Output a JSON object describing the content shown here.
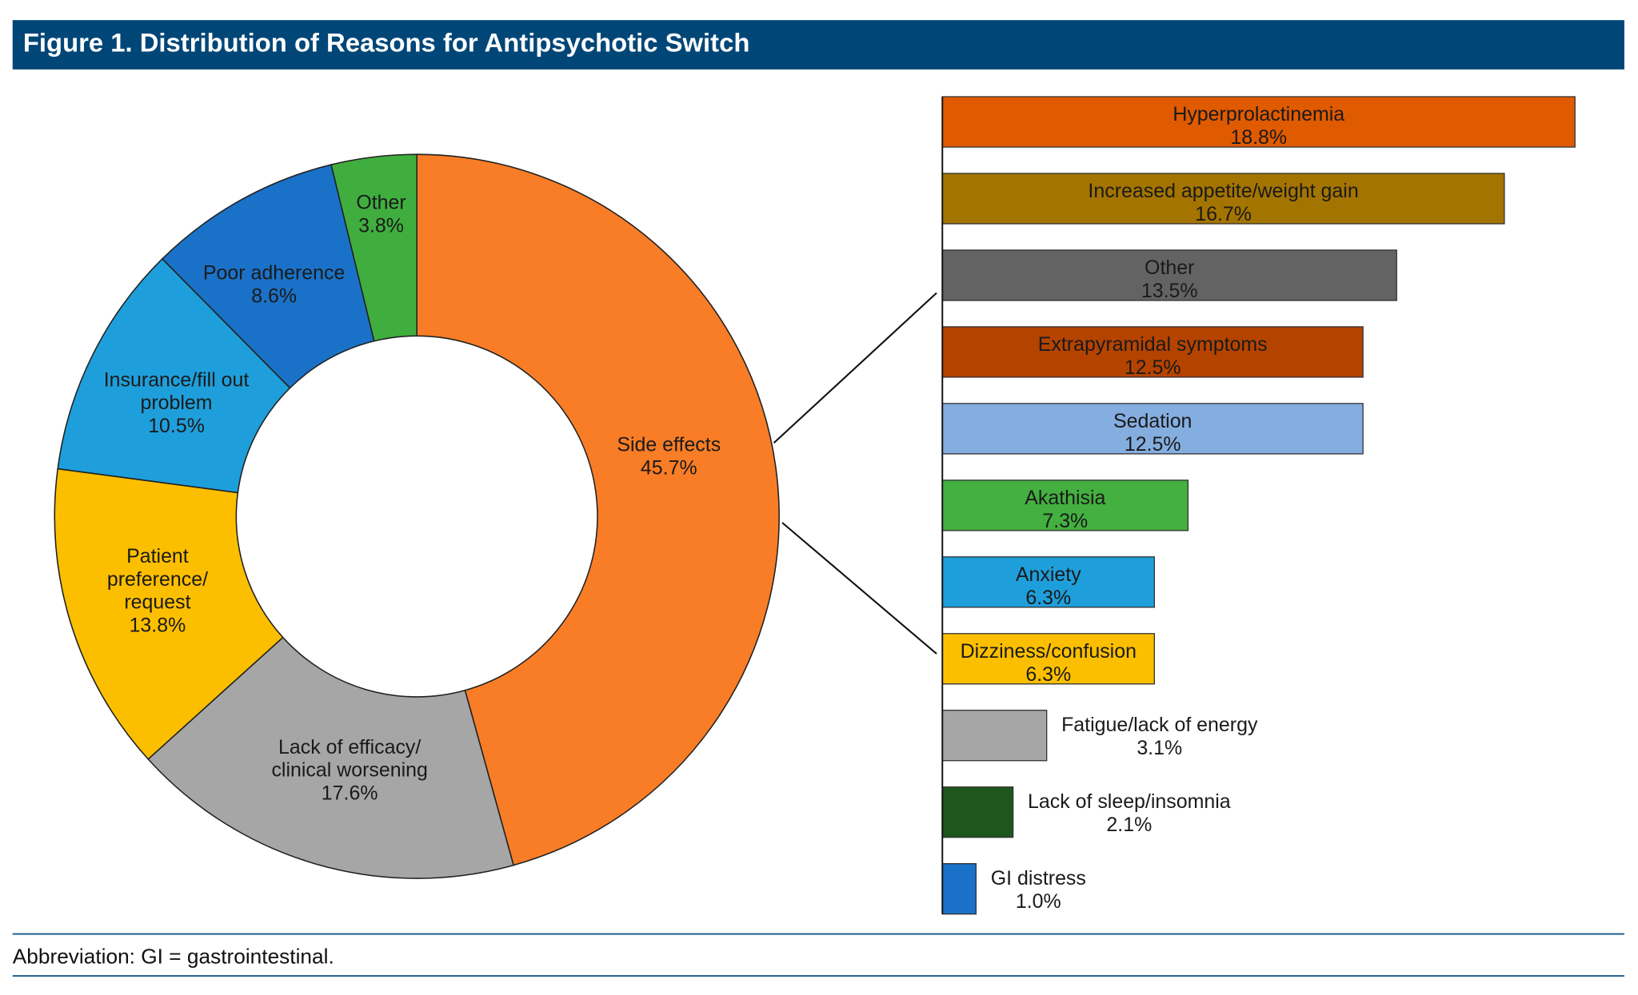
{
  "chart_data": [
    {
      "type": "pie",
      "variant": "donut",
      "title": "Figure 1. Distribution of Reasons for Antipsychotic Switch",
      "slices": [
        {
          "label": [
            "Side effects"
          ],
          "value": 45.7,
          "value_label": "45.7%",
          "color": "#F97D26"
        },
        {
          "label": [
            "Lack of efficacy/",
            "clinical worsening"
          ],
          "value": 17.6,
          "value_label": "17.6%",
          "color": "#A6A6A6"
        },
        {
          "label": [
            "Patient",
            "preference/",
            "request"
          ],
          "value": 13.8,
          "value_label": "13.8%",
          "color": "#FCBF00"
        },
        {
          "label": [
            "Insurance/fill out",
            "problem"
          ],
          "value": 10.5,
          "value_label": "10.5%",
          "color": "#1E9FDC"
        },
        {
          "label": [
            "Poor adherence"
          ],
          "value": 8.6,
          "value_label": "8.6%",
          "color": "#1A72C8"
        },
        {
          "label": [
            "Other"
          ],
          "value": 3.8,
          "value_label": "3.8%",
          "color": "#40AE3F"
        }
      ]
    },
    {
      "type": "bar",
      "orientation": "horizontal",
      "breakdown_of": "Side effects",
      "categories": [
        "Hyperprolactinemia",
        "Increased appetite/weight gain",
        "Other",
        "Extrapyramidal symptoms",
        "Sedation",
        "Akathisia",
        "Anxiety",
        "Dizziness/confusion",
        "Fatigue/lack of energy",
        "Lack of sleep/insomnia",
        "GI distress"
      ],
      "values": [
        18.8,
        16.7,
        13.5,
        12.5,
        12.5,
        7.3,
        6.3,
        6.3,
        3.1,
        2.1,
        1.0
      ],
      "value_labels": [
        "18.8%",
        "16.7%",
        "13.5%",
        "12.5%",
        "12.5%",
        "7.3%",
        "6.3%",
        "6.3%",
        "3.1%",
        "2.1%",
        "1.0%"
      ],
      "colors": [
        "#E05A00",
        "#A47400",
        "#636363",
        "#B54300",
        "#85AEE0",
        "#43B040",
        "#1E9FDC",
        "#FCBF00",
        "#A6A6A6",
        "#1E561E",
        "#1A72C8"
      ],
      "xlim": [
        0,
        18.8
      ],
      "grid": false
    }
  ],
  "header": {
    "title": "Figure 1. Distribution of Reasons for Antipsychotic Switch",
    "bg_color": "#004677"
  },
  "footnote": "Abbreviation: GI = gastrointestinal."
}
